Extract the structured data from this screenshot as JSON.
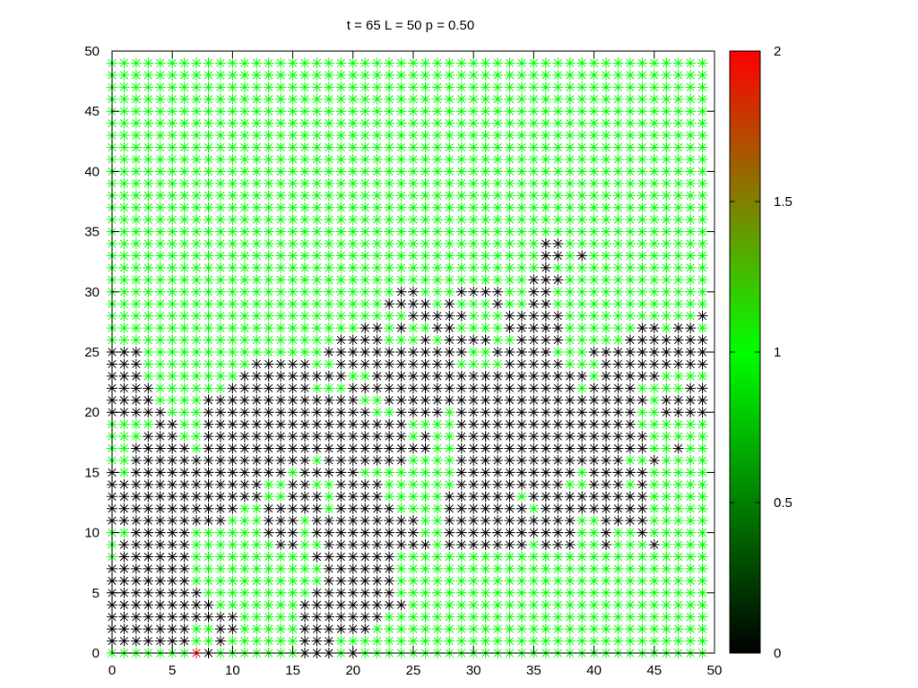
{
  "chart_data": {
    "type": "scatter",
    "title": "t = 65 L = 50 p = 0.50",
    "xlabel": "",
    "ylabel": "",
    "xlim": [
      0,
      50
    ],
    "ylim": [
      0,
      50
    ],
    "x_ticks": [
      0,
      5,
      10,
      15,
      20,
      25,
      30,
      35,
      40,
      45,
      50
    ],
    "y_ticks": [
      0,
      5,
      10,
      15,
      20,
      25,
      30,
      35,
      40,
      45,
      50
    ],
    "marker": "asterisk",
    "lattice_size": 50,
    "grid": false,
    "colorbar": {
      "range": [
        0,
        2
      ],
      "ticks": [
        0,
        0.5,
        1,
        1.5,
        2
      ],
      "tick_labels": [
        "0",
        "0.5",
        "1",
        "1.5",
        "2"
      ],
      "stops": [
        {
          "value": 0,
          "color": "#000000"
        },
        {
          "value": 1,
          "color": "#00ff00"
        },
        {
          "value": 2,
          "color": "#ff0000"
        }
      ]
    },
    "state_colors": {
      "0": "#000000",
      "1": "#00ff00",
      "2": "#ff0000"
    },
    "default_state": 1,
    "state0_rows": [
      {
        "y": 0,
        "x": [
          [
            8,
            8
          ],
          [
            16,
            18
          ],
          [
            20,
            20
          ]
        ]
      },
      {
        "y": 1,
        "x": [
          [
            0,
            6
          ],
          [
            9,
            9
          ],
          [
            16,
            18
          ]
        ]
      },
      {
        "y": 2,
        "x": [
          [
            0,
            6
          ],
          [
            9,
            10
          ],
          [
            16,
            21
          ]
        ]
      },
      {
        "y": 3,
        "x": [
          [
            0,
            10
          ],
          [
            16,
            22
          ]
        ]
      },
      {
        "y": 4,
        "x": [
          [
            0,
            8
          ],
          [
            16,
            24
          ]
        ]
      },
      {
        "y": 5,
        "x": [
          [
            0,
            7
          ],
          [
            17,
            23
          ]
        ]
      },
      {
        "y": 6,
        "x": [
          [
            0,
            6
          ],
          [
            18,
            23
          ]
        ]
      },
      {
        "y": 7,
        "x": [
          [
            0,
            6
          ],
          [
            18,
            23
          ]
        ]
      },
      {
        "y": 8,
        "x": [
          [
            1,
            6
          ],
          [
            17,
            23
          ]
        ]
      },
      {
        "y": 9,
        "x": [
          [
            1,
            6
          ],
          [
            14,
            15
          ],
          [
            18,
            26
          ],
          [
            28,
            34
          ],
          [
            36,
            38
          ],
          [
            41,
            41
          ],
          [
            45,
            45
          ]
        ]
      },
      {
        "y": 10,
        "x": [
          [
            2,
            6
          ],
          [
            13,
            15
          ],
          [
            17,
            25
          ],
          [
            28,
            38
          ],
          [
            41,
            41
          ],
          [
            44,
            44
          ]
        ]
      },
      {
        "y": 11,
        "x": [
          [
            0,
            9
          ],
          [
            13,
            15
          ],
          [
            17,
            25
          ],
          [
            28,
            38
          ],
          [
            41,
            44
          ]
        ]
      },
      {
        "y": 12,
        "x": [
          [
            0,
            10
          ],
          [
            13,
            17
          ],
          [
            19,
            23
          ],
          [
            28,
            34
          ],
          [
            36,
            44
          ]
        ]
      },
      {
        "y": 13,
        "x": [
          [
            0,
            12
          ],
          [
            15,
            17
          ],
          [
            19,
            22
          ],
          [
            28,
            33
          ],
          [
            35,
            44
          ]
        ]
      },
      {
        "y": 14,
        "x": [
          [
            0,
            12
          ],
          [
            15,
            16
          ],
          [
            19,
            22
          ],
          [
            29,
            37
          ],
          [
            40,
            42
          ],
          [
            44,
            44
          ]
        ]
      },
      {
        "y": 15,
        "x": [
          [
            0,
            0
          ],
          [
            2,
            14
          ],
          [
            16,
            20
          ],
          [
            29,
            38
          ],
          [
            40,
            44
          ]
        ]
      },
      {
        "y": 16,
        "x": [
          [
            2,
            16
          ],
          [
            18,
            24
          ],
          [
            29,
            42
          ],
          [
            45,
            45
          ]
        ]
      },
      {
        "y": 17,
        "x": [
          [
            2,
            6
          ],
          [
            8,
            26
          ],
          [
            29,
            44
          ],
          [
            47,
            47
          ]
        ]
      },
      {
        "y": 18,
        "x": [
          [
            3,
            5
          ],
          [
            8,
            24
          ],
          [
            26,
            26
          ],
          [
            29,
            44
          ]
        ]
      },
      {
        "y": 19,
        "x": [
          [
            4,
            5
          ],
          [
            8,
            24
          ],
          [
            29,
            43
          ]
        ]
      },
      {
        "y": 20,
        "x": [
          [
            0,
            4
          ],
          [
            8,
            21
          ],
          [
            24,
            27
          ],
          [
            29,
            43
          ],
          [
            46,
            49
          ]
        ]
      },
      {
        "y": 21,
        "x": [
          [
            0,
            3
          ],
          [
            8,
            20
          ],
          [
            23,
            44
          ],
          [
            46,
            49
          ]
        ]
      },
      {
        "y": 22,
        "x": [
          [
            0,
            3
          ],
          [
            10,
            16
          ],
          [
            20,
            38
          ],
          [
            40,
            43
          ],
          [
            48,
            49
          ]
        ]
      },
      {
        "y": 23,
        "x": [
          [
            0,
            2
          ],
          [
            11,
            19
          ],
          [
            22,
            39
          ],
          [
            41,
            45
          ]
        ]
      },
      {
        "y": 24,
        "x": [
          [
            0,
            2
          ],
          [
            12,
            16
          ],
          [
            19,
            28
          ],
          [
            33,
            37
          ],
          [
            41,
            49
          ]
        ]
      },
      {
        "y": 25,
        "x": [
          [
            0,
            2
          ],
          [
            18,
            29
          ],
          [
            32,
            36
          ],
          [
            40,
            49
          ]
        ]
      },
      {
        "y": 26,
        "x": [
          [
            19,
            22
          ],
          [
            26,
            26
          ],
          [
            28,
            31
          ],
          [
            34,
            37
          ],
          [
            43,
            49
          ]
        ]
      },
      {
        "y": 27,
        "x": [
          [
            21,
            22
          ],
          [
            24,
            24
          ],
          [
            27,
            28
          ],
          [
            33,
            37
          ],
          [
            44,
            45
          ],
          [
            47,
            48
          ]
        ]
      },
      {
        "y": 28,
        "x": [
          [
            25,
            29
          ],
          [
            33,
            37
          ],
          [
            49,
            49
          ]
        ]
      },
      {
        "y": 29,
        "x": [
          [
            23,
            26
          ],
          [
            28,
            28
          ],
          [
            32,
            32
          ],
          [
            35,
            36
          ]
        ]
      },
      {
        "y": 30,
        "x": [
          [
            24,
            25
          ],
          [
            29,
            32
          ],
          [
            35,
            36
          ]
        ]
      },
      {
        "y": 31,
        "x": [
          [
            35,
            37
          ]
        ]
      },
      {
        "y": 32,
        "x": [
          [
            36,
            36
          ]
        ]
      },
      {
        "y": 33,
        "x": [
          [
            36,
            37
          ],
          [
            39,
            39
          ]
        ]
      },
      {
        "y": 34,
        "x": [
          [
            36,
            37
          ]
        ]
      }
    ],
    "state2_points": [
      [
        7,
        0
      ]
    ]
  }
}
